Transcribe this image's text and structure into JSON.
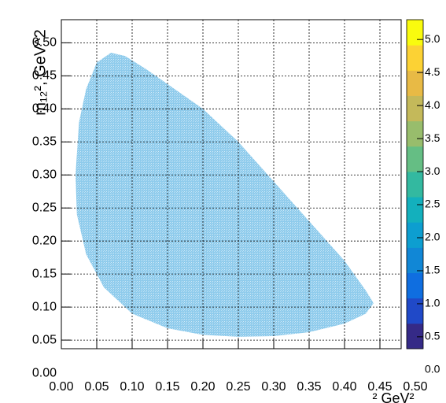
{
  "chart_data": {
    "type": "heatmap",
    "y_label": "m₁₂², GeV^2",
    "x_label": "² GeV²",
    "xlim": [
      0,
      0.48
    ],
    "ylim": [
      0.037,
      0.535
    ],
    "xticks": [
      {
        "value": 0,
        "label": "0.00"
      },
      {
        "value": 0.05,
        "label": "0.05"
      },
      {
        "value": 0.1,
        "label": "0.10"
      },
      {
        "value": 0.15,
        "label": "0.15"
      },
      {
        "value": 0.2,
        "label": "0.20"
      },
      {
        "value": 0.25,
        "label": "0.25"
      },
      {
        "value": 0.3,
        "label": "0.30"
      },
      {
        "value": 0.35,
        "label": "0.35"
      },
      {
        "value": 0.4,
        "label": "0.40"
      },
      {
        "value": 0.45,
        "label": "0.45"
      },
      {
        "value": 0.5,
        "label": "0.50"
      }
    ],
    "yticks": [
      {
        "value": 0,
        "label": "0.00"
      },
      {
        "value": 0.05,
        "label": "0.05"
      },
      {
        "value": 0.1,
        "label": "0.10"
      },
      {
        "value": 0.15,
        "label": "0.15"
      },
      {
        "value": 0.2,
        "label": "0.20"
      },
      {
        "value": 0.25,
        "label": "0.25"
      },
      {
        "value": 0.3,
        "label": "0.30"
      },
      {
        "value": 0.35,
        "label": "0.35"
      },
      {
        "value": 0.4,
        "label": "0.40"
      },
      {
        "value": 0.45,
        "label": "0.45"
      },
      {
        "value": 0.5,
        "label": "0.50"
      }
    ],
    "grid": true,
    "region": {
      "color": "#8ecbec",
      "x": [
        0.02,
        0.025,
        0.035,
        0.05,
        0.07,
        0.09,
        0.12,
        0.16,
        0.2,
        0.25,
        0.3,
        0.35,
        0.4,
        0.43,
        0.441,
        0.43,
        0.4,
        0.35,
        0.3,
        0.25,
        0.2,
        0.15,
        0.1,
        0.06,
        0.035,
        0.022
      ],
      "y": [
        0.3,
        0.38,
        0.43,
        0.47,
        0.485,
        0.48,
        0.46,
        0.43,
        0.4,
        0.35,
        0.29,
        0.23,
        0.17,
        0.125,
        0.106,
        0.09,
        0.075,
        0.062,
        0.056,
        0.055,
        0.058,
        0.068,
        0.09,
        0.13,
        0.18,
        0.24
      ]
    },
    "zlim": [
      0.32,
      5.3
    ],
    "zticks": [
      {
        "value": 0,
        "label": "0.0"
      },
      {
        "value": 0.5,
        "label": "0.5"
      },
      {
        "value": 1,
        "label": "1.0"
      },
      {
        "value": 1.5,
        "label": "1.5"
      },
      {
        "value": 2,
        "label": "2.0"
      },
      {
        "value": 2.5,
        "label": "2.5"
      },
      {
        "value": 3,
        "label": "3.0"
      },
      {
        "value": 3.5,
        "label": "3.5"
      },
      {
        "value": 4,
        "label": "4.0"
      },
      {
        "value": 4.5,
        "label": "4.5"
      },
      {
        "value": 5,
        "label": "5.0"
      }
    ],
    "palette": [
      "#352a87",
      "#2049c8",
      "#0f6ee0",
      "#1187d6",
      "#0d9ed0",
      "#13b0bd",
      "#33b9a0",
      "#65be84",
      "#98bd6c",
      "#c4b95a",
      "#e8ba45",
      "#fcd234",
      "#f9fb0e"
    ]
  }
}
